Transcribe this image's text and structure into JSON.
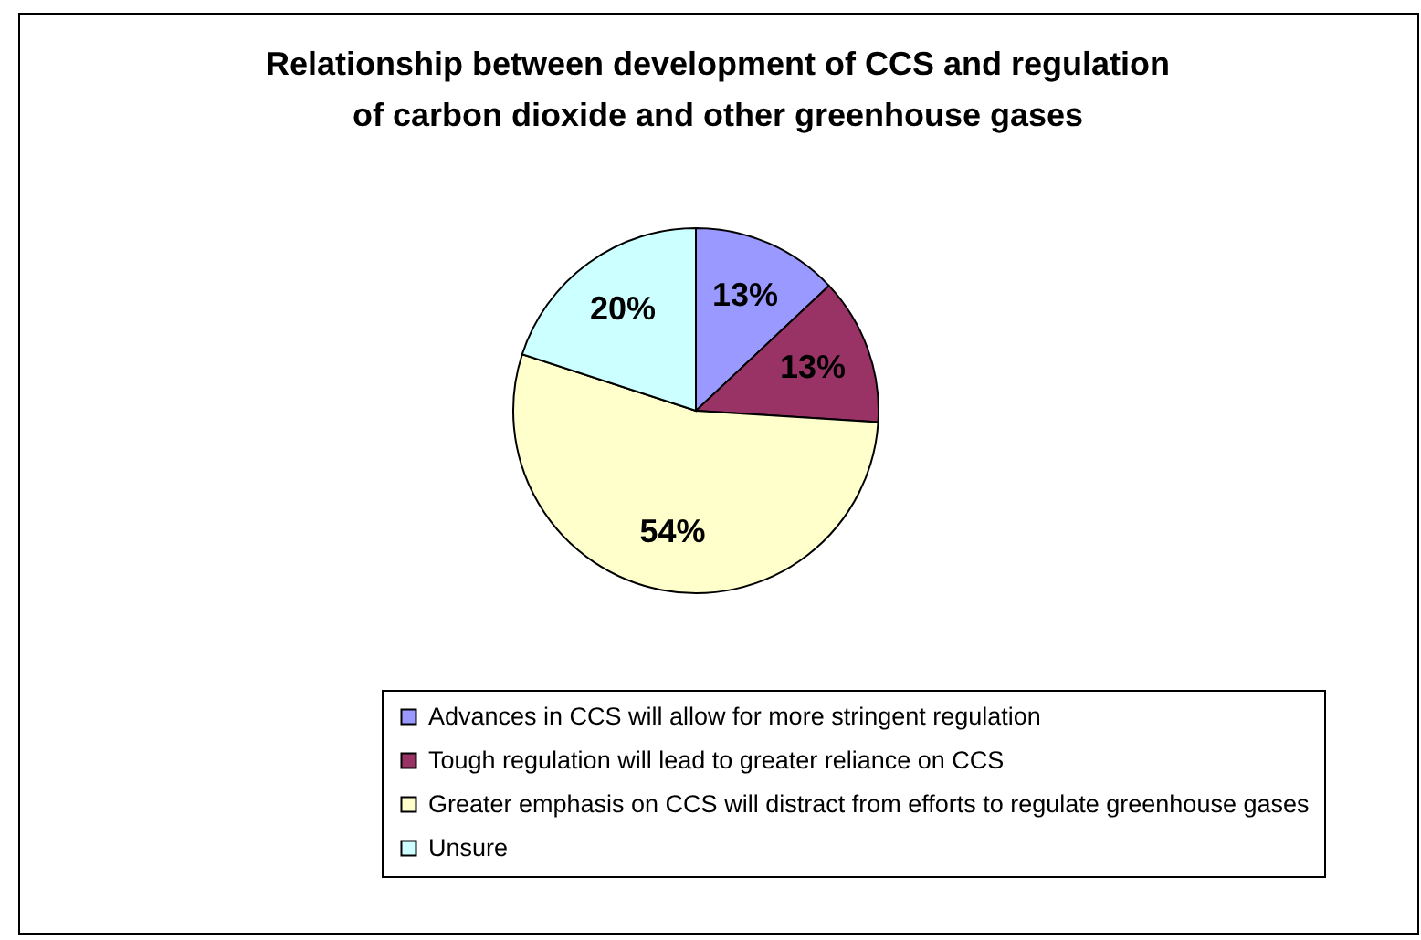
{
  "chart_data": {
    "type": "pie",
    "title": "Relationship between development of CCS and regulation\nof carbon dioxide and other greenhouse gases",
    "categories": [
      "Advances in CCS will allow for more stringent regulation",
      "Tough regulation will lead to greater reliance on CCS",
      "Greater emphasis on CCS will distract from efforts to regulate greenhouse gases",
      "Unsure"
    ],
    "values": [
      13,
      13,
      54,
      20
    ],
    "colors": [
      "#9999ff",
      "#993366",
      "#ffffcc",
      "#ccffff"
    ],
    "value_labels": [
      "13%",
      "13%",
      "54%",
      "20%"
    ],
    "legend": "bottom"
  }
}
